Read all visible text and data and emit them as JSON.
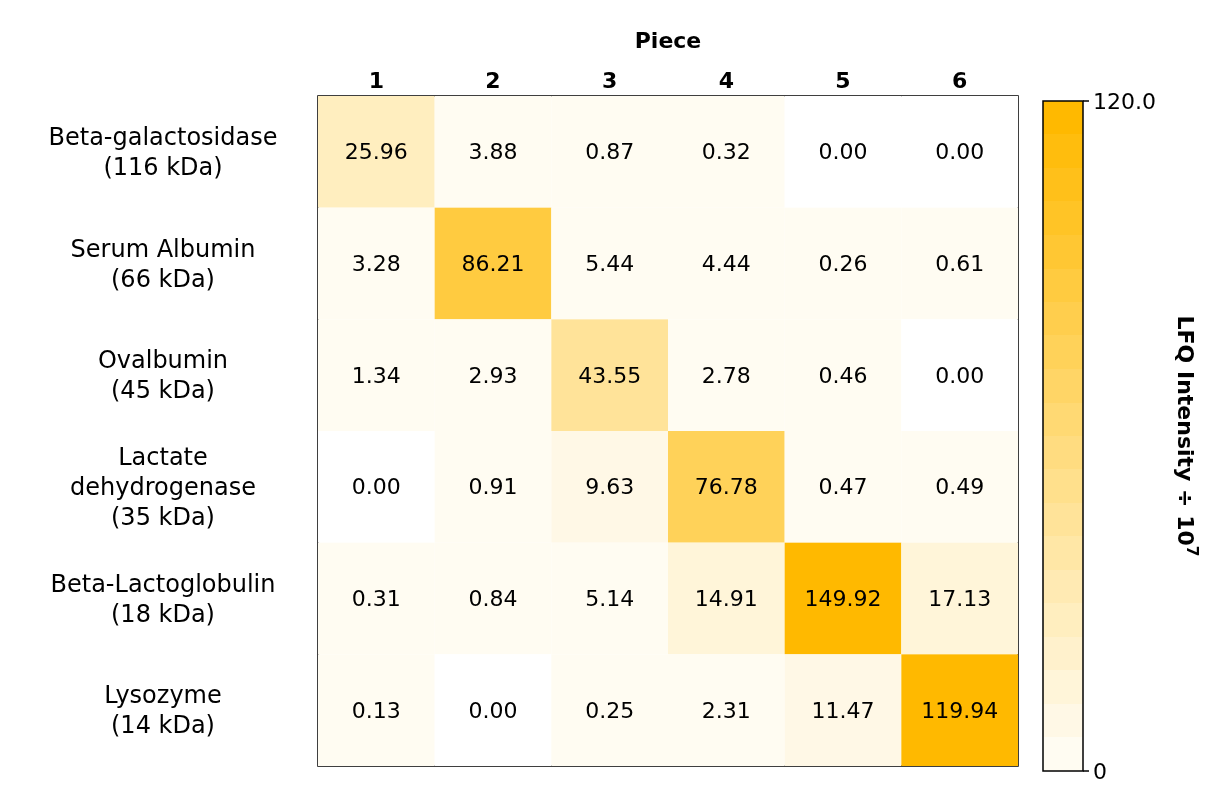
{
  "chart_data": {
    "type": "heatmap",
    "xlabel": "Piece",
    "clabel": "LFQ Intensity ÷ 10$^{7}$",
    "categories": [
      "1",
      "2",
      "3",
      "4",
      "5",
      "6"
    ],
    "y_categories": [
      "Beta-galactosidase\n(116 kDa)",
      "Serum Albumin\n(66 kDa)",
      "Ovalbumin\n(45 kDa)",
      "Lactate\ndehydrogenase\n(35 kDa)",
      "Beta-Lactoglobulin\n(18 kDa)",
      "Lysozyme\n(14 kDa)"
    ],
    "cells": [
      [
        25.96,
        3.88,
        0.87,
        0.32,
        0.0,
        0.0
      ],
      [
        3.28,
        86.21,
        5.44,
        4.44,
        0.26,
        0.61
      ],
      [
        1.34,
        2.93,
        43.55,
        2.78,
        0.46,
        0.0
      ],
      [
        0.0,
        0.91,
        9.63,
        76.78,
        0.47,
        0.49
      ],
      [
        0.31,
        0.84,
        5.14,
        14.91,
        149.92,
        17.13
      ],
      [
        0.13,
        0.0,
        0.25,
        2.31,
        11.47,
        119.94
      ]
    ],
    "cell_labels": [
      [
        "25.96",
        "3.88",
        "0.87",
        "0.32",
        "0.00",
        "0.00"
      ],
      [
        "3.28",
        "86.21",
        "5.44",
        "4.44",
        "0.26",
        "0.61"
      ],
      [
        "1.34",
        "2.93",
        "43.55",
        "2.78",
        "0.46",
        "0.00"
      ],
      [
        "0.00",
        "0.91",
        "9.63",
        "76.78",
        "0.47",
        "0.49"
      ],
      [
        "0.31",
        "0.84",
        "5.14",
        "14.91",
        "149.92",
        "17.13"
      ],
      [
        "0.13",
        "0.00",
        "0.25",
        "2.31",
        "11.47",
        "119.94"
      ]
    ],
    "clim": [
      0,
      120
    ],
    "cticks": [
      0,
      {
        "value": 120,
        "label": "120.0"
      }
    ]
  }
}
